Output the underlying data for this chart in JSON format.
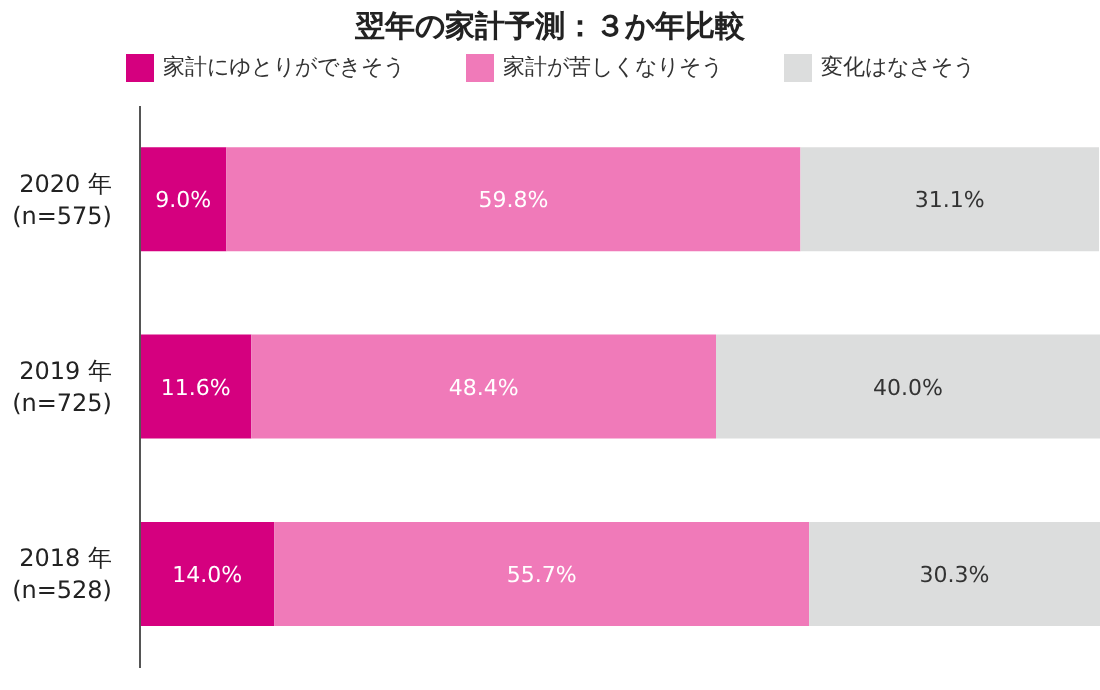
{
  "chart_data": {
    "type": "bar",
    "orientation": "horizontal",
    "stacked": true,
    "title": "翌年の家計予測：３か年比較",
    "categories": [
      "2020 年\n(n=575)",
      "2019 年\n(n=725)",
      "2018 年\n(n=528)"
    ],
    "xlim": [
      0,
      100
    ],
    "tick_labels": "y",
    "legend": "top",
    "series": [
      {
        "name": "家計にゆとりができそう",
        "color": "#d5007f",
        "values": [
          9.0,
          11.6,
          14.0
        ],
        "value_labels": [
          "9.0%",
          "11.6%",
          "14.0%"
        ]
      },
      {
        "name": "家計が苦しくなりそう",
        "color": "#f07ab9",
        "values": [
          59.8,
          48.4,
          55.7
        ],
        "value_labels": [
          "59.8%",
          "48.4%",
          "55.7%"
        ]
      },
      {
        "name": "変化はなさそう",
        "color": "#dcdddd",
        "values": [
          31.1,
          40.0,
          30.3
        ],
        "value_labels": [
          "31.1%",
          "40.0%",
          "30.3%"
        ]
      }
    ]
  }
}
